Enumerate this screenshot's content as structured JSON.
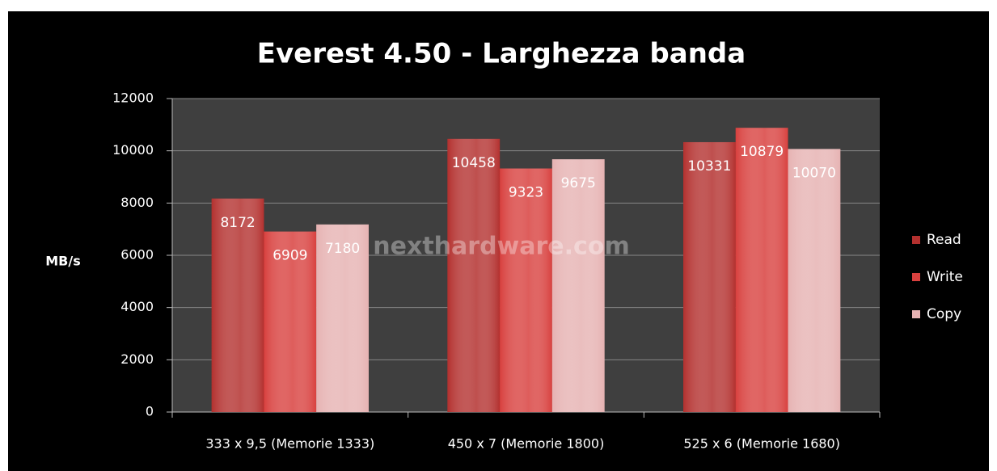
{
  "chart_data": {
    "type": "bar",
    "title": "Everest 4.50 - Larghezza banda",
    "y_label": "MB/s",
    "watermark": "nexthardware.com",
    "categories": [
      "333 x 9,5 (Memorie 1333)",
      "450 x 7 (Memorie 1800)",
      "525 x 6 (Memorie 1680)"
    ],
    "series": [
      {
        "name": "Read",
        "color": "#b3302e",
        "values": [
          8172,
          10458,
          10331
        ]
      },
      {
        "name": "Write",
        "color": "#d8403e",
        "values": [
          6909,
          9323,
          10879
        ]
      },
      {
        "name": "Copy",
        "color": "#e6b2b2",
        "values": [
          7180,
          9675,
          10070
        ]
      }
    ],
    "ylim": [
      0,
      12000
    ],
    "yticks": [
      0,
      2000,
      4000,
      6000,
      8000,
      10000,
      12000
    ],
    "grid": true,
    "legend": "right"
  }
}
